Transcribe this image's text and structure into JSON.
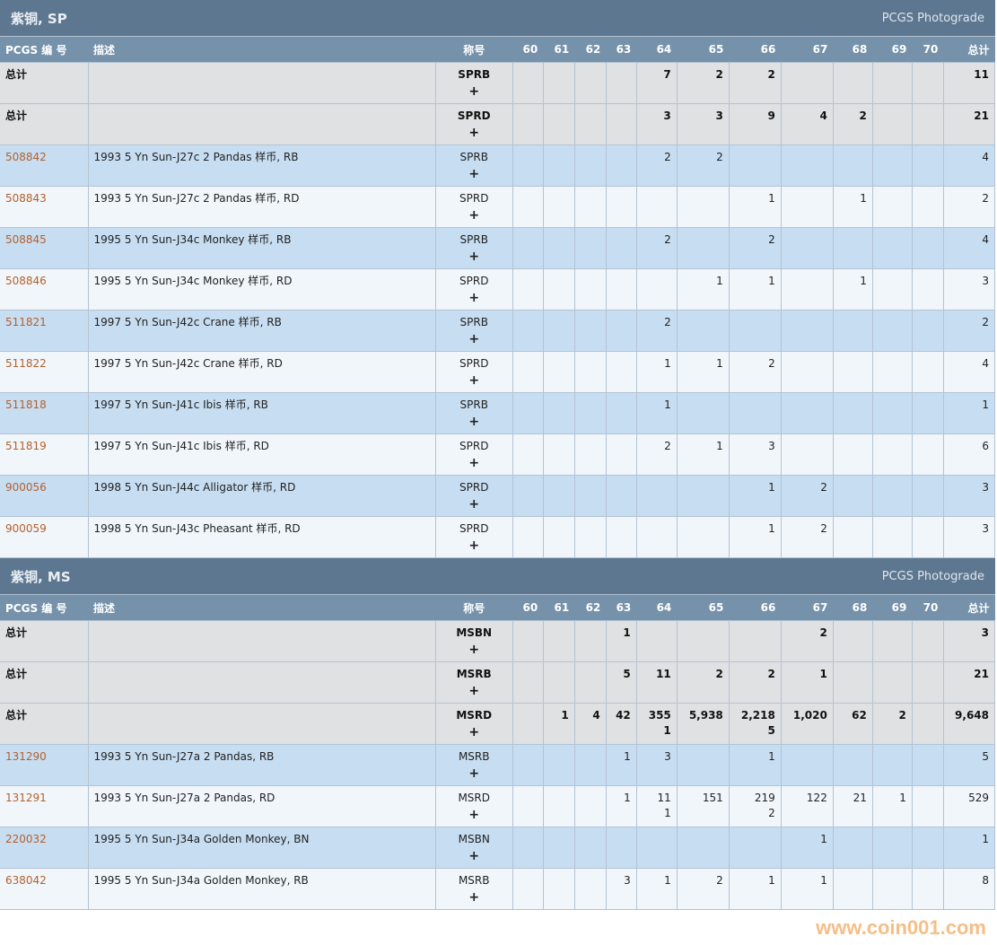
{
  "columns": {
    "pcgs": "PCGS 编 号",
    "desc": "描述",
    "designation": "称号",
    "grades": [
      "60",
      "61",
      "62",
      "63",
      "64",
      "65",
      "66",
      "67",
      "68",
      "69",
      "70"
    ],
    "total": "总计"
  },
  "plus_label": "+",
  "colors": {
    "section_header": "#5e7790",
    "column_header": "#7692ab",
    "total_row": "#e0e1e2",
    "row_odd": "#c7ddf1",
    "row_even": "#f1f6fa",
    "pcgs_link": "#b3612e",
    "watermark": "#f6b77a"
  },
  "sections": [
    {
      "title": "紫铜, SP",
      "subtitle": "PCGS Photograde",
      "rows": [
        {
          "type": "total",
          "pcgs": "总计",
          "desc": "",
          "des": "SPRB",
          "grades": [
            "",
            "",
            "",
            "",
            "7",
            "2",
            "2",
            "",
            "",
            "",
            ""
          ],
          "total": "11"
        },
        {
          "type": "total",
          "pcgs": "总计",
          "desc": "",
          "des": "SPRD",
          "grades": [
            "",
            "",
            "",
            "",
            "3",
            "3",
            "9",
            "4",
            "2",
            "",
            ""
          ],
          "total": "21"
        },
        {
          "type": "item",
          "pcgs": "508842",
          "desc": "1993 5 Yn Sun-J27c 2 Pandas 样币, RB",
          "des": "SPRB",
          "grades": [
            "",
            "",
            "",
            "",
            "2",
            "2",
            "",
            "",
            "",
            "",
            ""
          ],
          "total": "4"
        },
        {
          "type": "item",
          "pcgs": "508843",
          "desc": "1993 5 Yn Sun-J27c 2 Pandas 样币, RD",
          "des": "SPRD",
          "grades": [
            "",
            "",
            "",
            "",
            "",
            "",
            "1",
            "",
            "1",
            "",
            ""
          ],
          "total": "2"
        },
        {
          "type": "item",
          "pcgs": "508845",
          "desc": "1995 5 Yn Sun-J34c Monkey 样币, RB",
          "des": "SPRB",
          "grades": [
            "",
            "",
            "",
            "",
            "2",
            "",
            "2",
            "",
            "",
            "",
            ""
          ],
          "total": "4"
        },
        {
          "type": "item",
          "pcgs": "508846",
          "desc": "1995 5 Yn Sun-J34c Monkey 样币, RD",
          "des": "SPRD",
          "grades": [
            "",
            "",
            "",
            "",
            "",
            "1",
            "1",
            "",
            "1",
            "",
            ""
          ],
          "total": "3"
        },
        {
          "type": "item",
          "pcgs": "511821",
          "desc": "1997 5 Yn Sun-J42c Crane 样币, RB",
          "des": "SPRB",
          "grades": [
            "",
            "",
            "",
            "",
            "2",
            "",
            "",
            "",
            "",
            "",
            ""
          ],
          "total": "2"
        },
        {
          "type": "item",
          "pcgs": "511822",
          "desc": "1997 5 Yn Sun-J42c Crane 样币, RD",
          "des": "SPRD",
          "grades": [
            "",
            "",
            "",
            "",
            "1",
            "1",
            "2",
            "",
            "",
            "",
            ""
          ],
          "total": "4"
        },
        {
          "type": "item",
          "pcgs": "511818",
          "desc": "1997 5 Yn Sun-J41c Ibis 样币, RB",
          "des": "SPRB",
          "grades": [
            "",
            "",
            "",
            "",
            "1",
            "",
            "",
            "",
            "",
            "",
            ""
          ],
          "total": "1"
        },
        {
          "type": "item",
          "pcgs": "511819",
          "desc": "1997 5 Yn Sun-J41c Ibis 样币, RD",
          "des": "SPRD",
          "grades": [
            "",
            "",
            "",
            "",
            "2",
            "1",
            "3",
            "",
            "",
            "",
            ""
          ],
          "total": "6"
        },
        {
          "type": "item",
          "pcgs": "900056",
          "desc": "1998 5 Yn Sun-J44c Alligator 样币, RD",
          "des": "SPRD",
          "grades": [
            "",
            "",
            "",
            "",
            "",
            "",
            "1",
            "2",
            "",
            "",
            ""
          ],
          "total": "3"
        },
        {
          "type": "item",
          "pcgs": "900059",
          "desc": "1998 5 Yn Sun-J43c Pheasant 样币, RD",
          "des": "SPRD",
          "grades": [
            "",
            "",
            "",
            "",
            "",
            "",
            "1",
            "2",
            "",
            "",
            ""
          ],
          "total": "3"
        }
      ]
    },
    {
      "title": "紫铜, MS",
      "subtitle": "PCGS Photograde",
      "rows": [
        {
          "type": "total",
          "pcgs": "总计",
          "desc": "",
          "des": "MSBN",
          "grades": [
            "",
            "",
            "",
            "1",
            "",
            "",
            "",
            "2",
            "",
            "",
            ""
          ],
          "total": "3"
        },
        {
          "type": "total",
          "pcgs": "总计",
          "desc": "",
          "des": "MSRB",
          "grades": [
            "",
            "",
            "",
            "5",
            "11",
            "2",
            "2",
            "1",
            "",
            "",
            ""
          ],
          "total": "21"
        },
        {
          "type": "total",
          "pcgs": "总计",
          "desc": "",
          "des": "MSRD",
          "grades": [
            "",
            "1",
            "4",
            "42",
            "355\n1",
            "5,938",
            "2,218\n5",
            "1,020",
            "62",
            "2",
            ""
          ],
          "total": "9,648"
        },
        {
          "type": "item",
          "pcgs": "131290",
          "desc": "1993 5 Yn Sun-J27a 2 Pandas, RB",
          "des": "MSRB",
          "grades": [
            "",
            "",
            "",
            "1",
            "3",
            "",
            "1",
            "",
            "",
            "",
            ""
          ],
          "total": "5"
        },
        {
          "type": "item",
          "pcgs": "131291",
          "desc": "1993 5 Yn Sun-J27a 2 Pandas, RD",
          "des": "MSRD",
          "grades": [
            "",
            "",
            "",
            "1",
            "11\n1",
            "151",
            "219\n2",
            "122",
            "21",
            "1",
            ""
          ],
          "total": "529"
        },
        {
          "type": "item",
          "pcgs": "220032",
          "desc": "1995 5 Yn Sun-J34a Golden Monkey, BN",
          "des": "MSBN",
          "grades": [
            "",
            "",
            "",
            "",
            "",
            "",
            "",
            "1",
            "",
            "",
            ""
          ],
          "total": "1"
        },
        {
          "type": "item",
          "pcgs": "638042",
          "desc": "1995 5 Yn Sun-J34a Golden Monkey, RB",
          "des": "MSRB",
          "grades": [
            "",
            "",
            "",
            "3",
            "1",
            "2",
            "1",
            "1",
            "",
            "",
            ""
          ],
          "total": "8"
        }
      ]
    }
  ],
  "watermark": "www.coin001.com"
}
